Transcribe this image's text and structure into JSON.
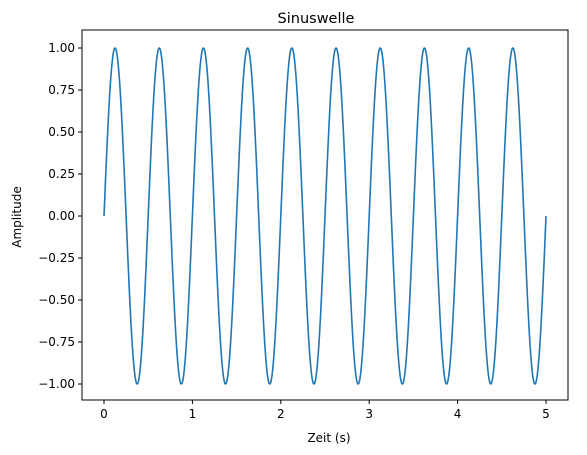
{
  "chart_data": {
    "type": "line",
    "title": "Sinuswelle",
    "xlabel": "Zeit (s)",
    "ylabel": "Amplitude",
    "xlim": [
      0,
      5
    ],
    "ylim": [
      -1,
      1
    ],
    "x_ticks": [
      "0",
      "1",
      "2",
      "3",
      "4",
      "5"
    ],
    "y_ticks": [
      "1.00",
      "0.75",
      "0.50",
      "0.25",
      "0.00",
      "−0.25",
      "−0.50",
      "−0.75",
      "−1.00"
    ],
    "grid": false,
    "legend": "none",
    "series": [
      {
        "color": "#1f77b4",
        "function": "sin(2*pi*2*t)",
        "frequency_hz": 2,
        "amplitude": 1
      }
    ]
  }
}
